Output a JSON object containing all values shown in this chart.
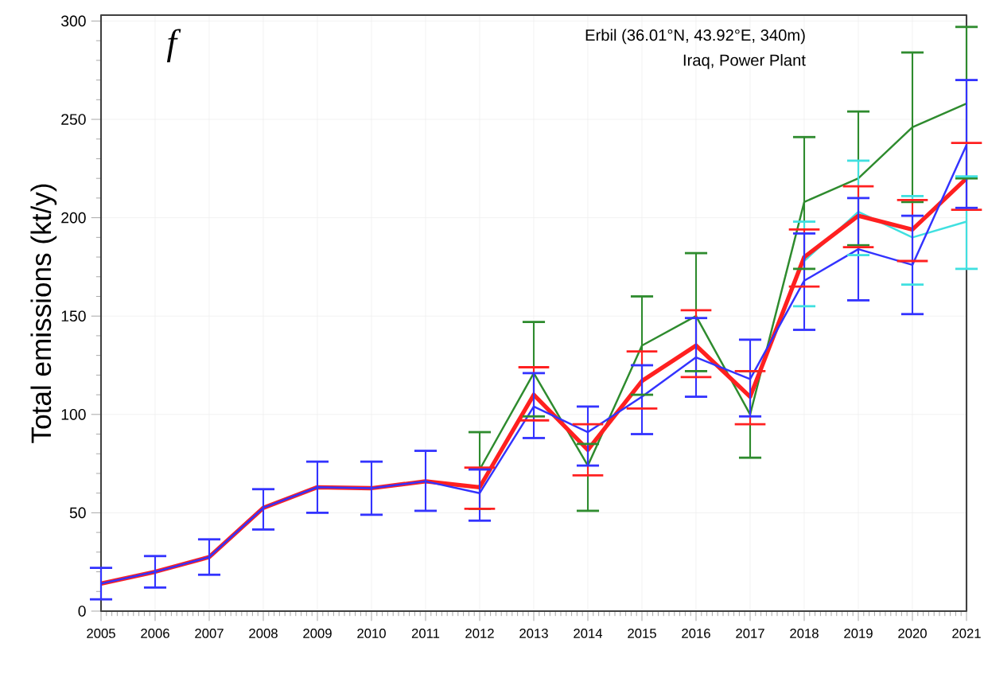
{
  "chart_data": {
    "type": "line",
    "ylabel": "Total emissions (kt/y)",
    "annotations": [
      "f",
      "Erbil (36.01°N, 43.92°E, 340m)",
      "Iraq, Power Plant"
    ],
    "x": [
      2005,
      2006,
      2007,
      2008,
      2009,
      2010,
      2011,
      2012,
      2013,
      2014,
      2015,
      2016,
      2017,
      2018,
      2019,
      2020,
      2021
    ],
    "xlim": [
      2005,
      2021
    ],
    "xticks": [
      2005,
      2006,
      2007,
      2008,
      2009,
      2010,
      2011,
      2012,
      2013,
      2014,
      2015,
      2016,
      2017,
      2018,
      2019,
      2020,
      2021
    ],
    "ylim": [
      0,
      303
    ],
    "yticks": [
      0,
      50,
      100,
      150,
      200,
      250,
      300
    ],
    "grid": true,
    "marker": "none",
    "line_style": "solid",
    "series": [
      {
        "color": "#2e8b2e",
        "values": [
          null,
          null,
          null,
          null,
          null,
          null,
          null,
          72,
          121,
          74,
          135,
          150,
          100,
          208,
          220,
          246,
          258
        ],
        "errors": [
          null,
          null,
          null,
          null,
          null,
          null,
          null,
          [
            52,
            91
          ],
          [
            99,
            147
          ],
          [
            51,
            85
          ],
          [
            110,
            160
          ],
          [
            122,
            182
          ],
          [
            78,
            122
          ],
          [
            174,
            241
          ],
          [
            186,
            254
          ],
          [
            208,
            284
          ],
          [
            220,
            297
          ]
        ]
      },
      {
        "color": "#40e0e0",
        "values": [
          null,
          null,
          null,
          null,
          null,
          null,
          null,
          null,
          null,
          null,
          null,
          null,
          null,
          178,
          203,
          190,
          198
        ],
        "errors": [
          null,
          null,
          null,
          null,
          null,
          null,
          null,
          null,
          null,
          null,
          null,
          null,
          null,
          [
            155,
            198
          ],
          [
            181,
            229
          ],
          [
            166,
            211
          ],
          [
            174,
            221
          ]
        ]
      },
      {
        "color": "#ff2020",
        "values": [
          14,
          20,
          27.5,
          52.5,
          63,
          62.5,
          66,
          63,
          110,
          82,
          117,
          135,
          109,
          180,
          201,
          194,
          220
        ],
        "errors": [
          null,
          null,
          null,
          null,
          null,
          null,
          null,
          [
            52,
            73
          ],
          [
            97,
            124
          ],
          [
            69,
            95
          ],
          [
            103,
            132
          ],
          [
            119,
            153
          ],
          [
            95,
            122
          ],
          [
            165,
            194
          ],
          [
            185,
            216
          ],
          [
            178,
            209
          ],
          [
            204,
            238
          ]
        ]
      },
      {
        "color": "#3333ff",
        "values": [
          14,
          20,
          27.5,
          52.5,
          63,
          62.5,
          66,
          60,
          104,
          91,
          109,
          129,
          118,
          168,
          184,
          176,
          237
        ],
        "errors": [
          [
            6,
            22
          ],
          [
            12,
            28
          ],
          [
            18.5,
            36.5
          ],
          [
            41.5,
            62
          ],
          [
            50,
            76
          ],
          [
            49,
            76
          ],
          [
            51,
            81.5
          ],
          [
            46,
            72
          ],
          [
            88,
            121
          ],
          [
            74,
            104
          ],
          [
            90,
            125
          ],
          [
            109,
            149
          ],
          [
            99,
            138
          ],
          [
            143,
            192
          ],
          [
            158,
            210
          ],
          [
            151,
            201
          ],
          [
            205,
            270
          ]
        ]
      }
    ]
  }
}
